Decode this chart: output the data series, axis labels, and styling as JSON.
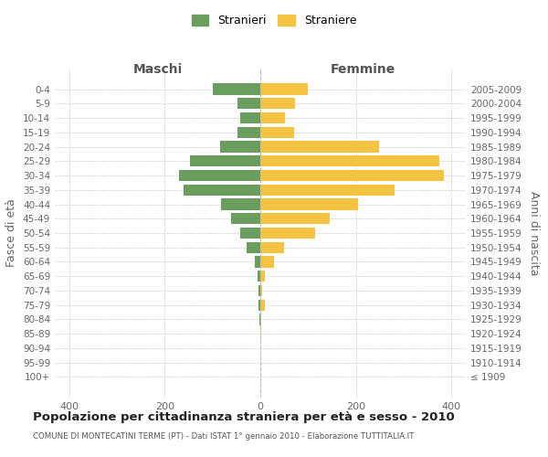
{
  "age_groups": [
    "0-4",
    "5-9",
    "10-14",
    "15-19",
    "20-24",
    "25-29",
    "30-34",
    "35-39",
    "40-44",
    "45-49",
    "50-54",
    "55-59",
    "60-64",
    "65-69",
    "70-74",
    "75-79",
    "80-84",
    "85-89",
    "90-94",
    "95-99",
    "100+"
  ],
  "birth_years": [
    "2005-2009",
    "2000-2004",
    "1995-1999",
    "1990-1994",
    "1985-1989",
    "1980-1984",
    "1975-1979",
    "1970-1974",
    "1965-1969",
    "1960-1964",
    "1955-1959",
    "1950-1954",
    "1945-1949",
    "1940-1944",
    "1935-1939",
    "1930-1934",
    "1925-1929",
    "1920-1924",
    "1915-1919",
    "1910-1914",
    "≤ 1909"
  ],
  "maschi": [
    100,
    48,
    42,
    48,
    85,
    148,
    170,
    160,
    82,
    62,
    42,
    28,
    12,
    6,
    4,
    3,
    1,
    0,
    0,
    0,
    0
  ],
  "femmine": [
    100,
    72,
    52,
    70,
    248,
    375,
    385,
    280,
    205,
    145,
    115,
    50,
    28,
    10,
    4,
    10,
    2,
    1,
    0,
    0,
    0
  ],
  "maschi_color": "#6a9e5e",
  "femmine_color": "#f5c242",
  "background_color": "#ffffff",
  "grid_color": "#cccccc",
  "title": "Popolazione per cittadinanza straniera per età e sesso - 2010",
  "subtitle": "COMUNE DI MONTECATINI TERME (PT) - Dati ISTAT 1° gennaio 2010 - Elaborazione TUTTITALIA.IT",
  "ylabel_left": "Fasce di età",
  "ylabel_right": "Anni di nascita",
  "xlabel_left": "Maschi",
  "xlabel_right": "Femmine",
  "legend_maschi": "Stranieri",
  "legend_femmine": "Straniere",
  "xlim": 430,
  "figsize": [
    6.0,
    5.0
  ],
  "dpi": 100
}
